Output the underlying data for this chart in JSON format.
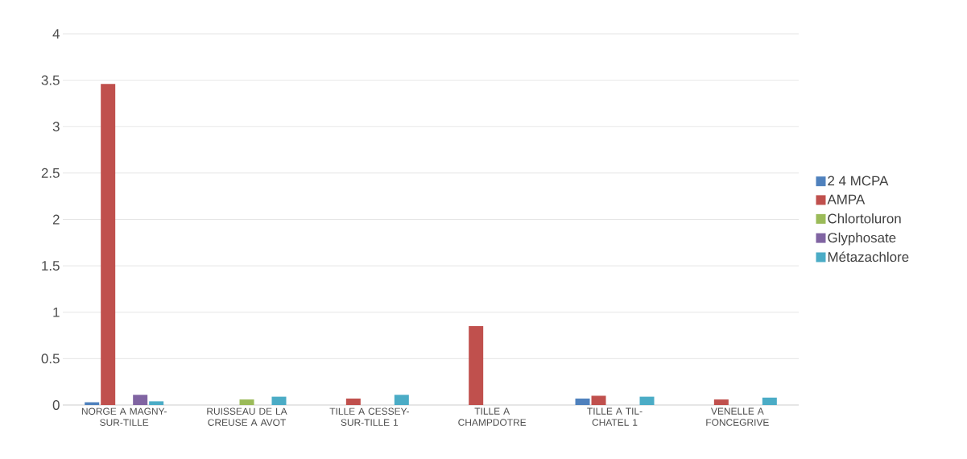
{
  "chart_data": {
    "type": "bar",
    "categories": [
      "NORGE A MAGNY-SUR-TILLE",
      "RUISSEAU DE LA CREUSE A AVOT",
      "TILLE A CESSEY-SUR-TILLE 1",
      "TILLE A CHAMPDOTRE",
      "TILLE A TIL-CHATEL 1",
      "VENELLE A FONCEGRIVE"
    ],
    "series": [
      {
        "name": "2 4 MCPA",
        "color": "#4f81bd",
        "values": [
          0.03,
          null,
          null,
          null,
          0.07,
          null
        ]
      },
      {
        "name": "AMPA",
        "color": "#c0504d",
        "values": [
          3.46,
          null,
          0.07,
          0.85,
          0.1,
          0.06
        ]
      },
      {
        "name": "Chlortoluron",
        "color": "#9bbb59",
        "values": [
          null,
          0.06,
          null,
          null,
          null,
          null
        ]
      },
      {
        "name": "Glyphosate",
        "color": "#8064a2",
        "values": [
          0.11,
          null,
          null,
          null,
          null,
          null
        ]
      },
      {
        "name": "Métazachlore",
        "color": "#4bacc6",
        "values": [
          0.04,
          0.09,
          0.11,
          null,
          0.09,
          0.08
        ]
      }
    ],
    "ylim": [
      0,
      4
    ],
    "yticks": [
      0,
      0.5,
      1,
      1.5,
      2,
      2.5,
      3,
      3.5,
      4
    ],
    "grid": "y",
    "legend": "right"
  }
}
